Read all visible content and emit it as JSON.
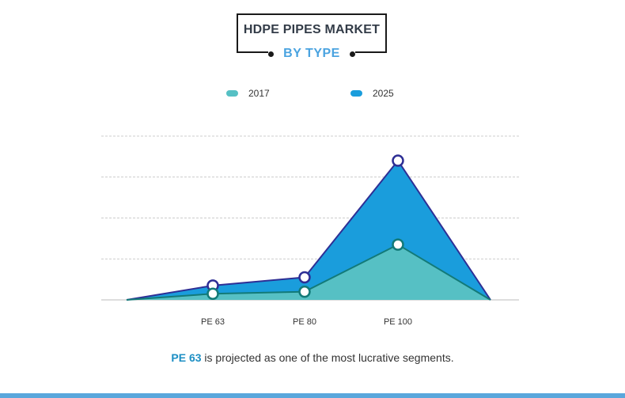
{
  "header": {
    "title": "HDPE PIPES MARKET",
    "subtitle": "BY TYPE"
  },
  "legend": [
    {
      "label": "2017",
      "color": "#56c0c4"
    },
    {
      "label": "2025",
      "color": "#1a9ddc"
    }
  ],
  "caption": {
    "highlight": "PE 63",
    "rest": " is projected as one of the most lucrative segments."
  },
  "colors": {
    "series_2017_fill": "#56c0c4",
    "series_2017_line": "#137a78",
    "series_2025_fill": "#1a9ddc",
    "series_2025_line": "#2e2f95",
    "grid": "#cccccc",
    "bottom_bar": "#5aa7dc"
  },
  "chart_data": {
    "type": "area",
    "categories": [
      "",
      "PE 63",
      "PE 80",
      "PE 100",
      ""
    ],
    "series": [
      {
        "name": "2017",
        "values": [
          0,
          1.5,
          2,
          13.5,
          0
        ],
        "color": "#56c0c4"
      },
      {
        "name": "2025",
        "values": [
          0,
          3.5,
          5.5,
          34,
          0
        ],
        "color": "#1a9ddc"
      }
    ],
    "ylim": [
      0,
      40
    ],
    "grid": true,
    "legend_position": "top"
  }
}
